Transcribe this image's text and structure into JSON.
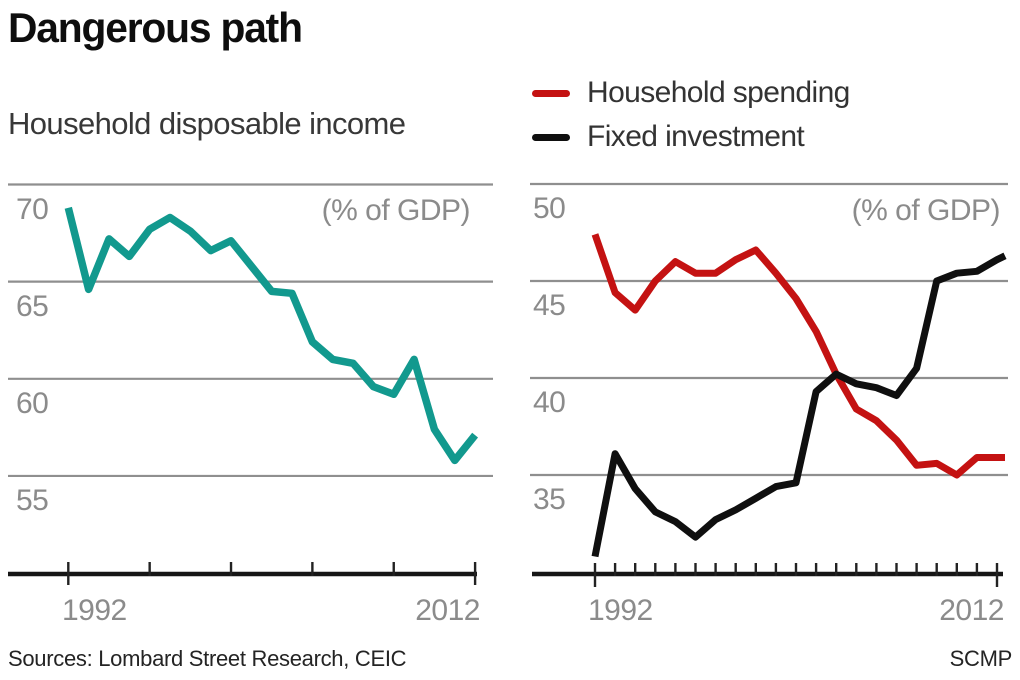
{
  "title": "Dangerous path",
  "legend": {
    "items": [
      {
        "label": "Household spending",
        "color": "#c41212"
      },
      {
        "label": "Fixed investment",
        "color": "#0f0f0f"
      }
    ]
  },
  "footer": {
    "sources": "Sources: Lombard Street Research, CEIC",
    "credit": "SCMP"
  },
  "colors": {
    "grid": "#8f8f8f",
    "axis": "#161616",
    "tick": "#222222",
    "label_gray": "#8b8b8b",
    "teal": "#12998e",
    "red": "#c41212",
    "black": "#0f0f0f"
  },
  "chart_data": [
    {
      "type": "line",
      "title": "Household disposable income",
      "unit": "(% of GDP)",
      "legend_position": "none",
      "grid": "on",
      "y_gridlines": [
        70,
        65,
        60,
        55
      ],
      "x_tick_labels": [
        "1992",
        "2012"
      ],
      "x_axis_tick_years": [
        1992,
        1996,
        2000,
        2004,
        2008,
        2012
      ],
      "x": [
        1992,
        1993,
        1994,
        1995,
        1996,
        1997,
        1998,
        1999,
        2000,
        2001,
        2002,
        2003,
        2004,
        2005,
        2006,
        2007,
        2008,
        2009,
        2010,
        2011,
        2012
      ],
      "series": [
        {
          "name": "Household disposable income",
          "color": "#12998e",
          "values": [
            68.8,
            64.6,
            67.2,
            66.3,
            67.7,
            68.3,
            67.6,
            66.6,
            67.1,
            65.8,
            64.5,
            64.4,
            61.9,
            61.0,
            60.8,
            59.6,
            59.2,
            61.0,
            57.4,
            55.8,
            57.1
          ]
        }
      ]
    },
    {
      "type": "line",
      "title": "",
      "unit": "(% of GDP)",
      "legend_position": "top",
      "grid": "on",
      "y_gridlines": [
        50,
        45,
        40,
        35
      ],
      "x_tick_labels": [
        "1992",
        "2012"
      ],
      "x_axis_tick_years": [
        1992,
        1993,
        1994,
        1995,
        1996,
        1997,
        1998,
        1999,
        2000,
        2001,
        2002,
        2003,
        2004,
        2005,
        2006,
        2007,
        2008,
        2009,
        2010,
        2011,
        2012
      ],
      "x": [
        1992,
        1993,
        1994,
        1995,
        1996,
        1997,
        1998,
        1999,
        2000,
        2001,
        2002,
        2003,
        2004,
        2005,
        2006,
        2007,
        2008,
        2009,
        2010,
        2011,
        2012,
        2012.4
      ],
      "series": [
        {
          "name": "Household spending",
          "color": "#c41212",
          "values": [
            47.4,
            44.4,
            43.5,
            45.0,
            46.0,
            45.4,
            45.4,
            46.1,
            46.6,
            45.4,
            44.1,
            42.4,
            40.2,
            38.4,
            37.8,
            36.8,
            35.5,
            35.6,
            35.0,
            35.9,
            35.9,
            35.9
          ]
        },
        {
          "name": "Fixed investment",
          "color": "#0f0f0f",
          "values": [
            30.8,
            36.1,
            34.3,
            33.1,
            32.6,
            31.8,
            32.7,
            33.2,
            33.8,
            34.4,
            34.6,
            39.3,
            40.2,
            39.7,
            39.5,
            39.1,
            40.5,
            45.0,
            45.4,
            45.5,
            46.1,
            46.3
          ]
        }
      ]
    }
  ]
}
